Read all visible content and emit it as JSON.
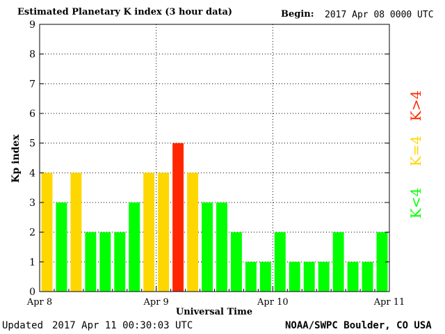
{
  "header": {
    "title": "Estimated Planetary K index (3 hour data)",
    "begin_label": "Begin:",
    "begin_value": "2017 Apr 08 0000 UTC"
  },
  "footer": {
    "updated_label": "Updated",
    "updated_value": "2017 Apr 11 00:30:03 UTC",
    "credit": "NOAA/SWPC Boulder, CO USA"
  },
  "legend": {
    "below": "K<4",
    "equal": "K=4",
    "above": "K>4"
  },
  "colors": {
    "below": "#00ff00",
    "equal": "#ffd700",
    "above": "#ff2600",
    "grid": "#000000",
    "axis": "#000000"
  },
  "chart_data": {
    "type": "bar",
    "title": "Estimated Planetary K index (3 hour data)",
    "xlabel": "Universal Time",
    "ylabel": "Kp index",
    "ylim": [
      0,
      9
    ],
    "yticks": [
      0,
      1,
      2,
      3,
      4,
      5,
      6,
      7,
      8,
      9
    ],
    "xticks": [
      "Apr 8",
      "Apr 9",
      "Apr 10",
      "Apr 11"
    ],
    "grid": true,
    "interval_hours": 3,
    "series": [
      {
        "values": [
          4,
          3,
          4,
          2,
          2,
          2,
          3,
          4,
          4,
          5,
          4,
          3,
          3,
          2,
          1,
          1,
          2,
          1,
          1,
          1,
          2,
          1,
          1,
          2
        ]
      }
    ]
  }
}
